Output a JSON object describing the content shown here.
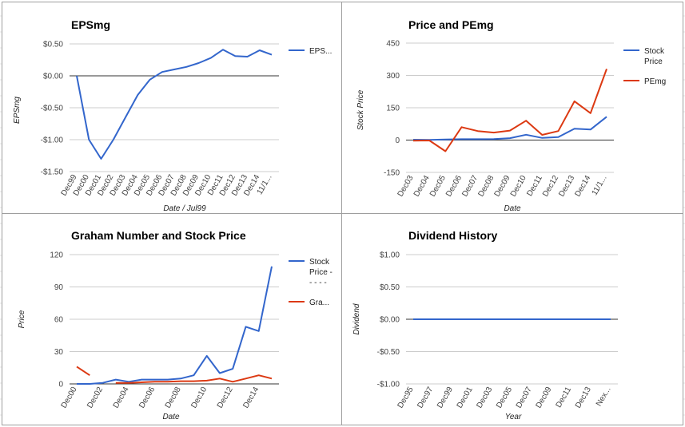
{
  "colors": {
    "blue": "#3366cc",
    "red": "#dc3912",
    "grid": "#cccccc",
    "zero": "#333333"
  },
  "chart_data": [
    {
      "type": "line",
      "title": "EPSmg",
      "xlabel": "Date / Jul99",
      "ylabel": "EPSmg",
      "ylim": [
        -1.5,
        0.5
      ],
      "yticks": [
        0.5,
        0,
        -0.5,
        -1,
        -1.5
      ],
      "ytick_labels": [
        "$0.50",
        "$0.00",
        "-$0.50",
        "-$1.00",
        "-$1.50"
      ],
      "categories": [
        "Dec99",
        "Dec00",
        "Dec01",
        "Dec02",
        "Dec03",
        "Dec04",
        "Dec05",
        "Dec06",
        "Dec07",
        "Dec08",
        "Dec09",
        "Dec10",
        "Dec11",
        "Dec12",
        "Dec13",
        "Dec14",
        "11/1..."
      ],
      "legend": "right",
      "series": [
        {
          "name": "EPS...",
          "color": "#3366cc",
          "values": [
            0.0,
            -1.0,
            -1.3,
            -1.0,
            -0.65,
            -0.3,
            -0.06,
            0.06,
            0.1,
            0.14,
            0.2,
            0.28,
            0.41,
            0.31,
            0.3,
            0.4,
            0.33
          ]
        }
      ]
    },
    {
      "type": "line",
      "title": "Price and PEmg",
      "xlabel": "Date",
      "ylabel": "Stock Price",
      "ylim": [
        -150,
        450
      ],
      "yticks": [
        450,
        300,
        150,
        0,
        -150
      ],
      "ytick_labels": [
        "450",
        "300",
        "150",
        "0",
        "-150"
      ],
      "categories": [
        "Dec03",
        "Dec04",
        "Dec05",
        "Dec06",
        "Dec07",
        "Dec08",
        "Dec09",
        "Dec10",
        "Dec11",
        "Dec12",
        "Dec13",
        "Dec14",
        "11/1..."
      ],
      "legend": "right",
      "series": [
        {
          "name": "Stock Price",
          "legend_lines": [
            "Stock",
            "Price"
          ],
          "color": "#3366cc",
          "values": [
            2,
            1,
            3,
            4,
            4,
            5,
            9,
            25,
            10,
            14,
            53,
            49,
            108
          ]
        },
        {
          "name": "PEmg",
          "legend_lines": [
            "PEmg"
          ],
          "color": "#dc3912",
          "values": [
            -3,
            -2,
            -52,
            60,
            42,
            35,
            44,
            90,
            24,
            42,
            180,
            125,
            330
          ]
        }
      ]
    },
    {
      "type": "line",
      "title": "Graham Number and Stock Price",
      "xlabel": "Date",
      "ylabel": "Price",
      "ylim": [
        0,
        120
      ],
      "yticks": [
        120,
        90,
        60,
        30,
        0
      ],
      "ytick_labels": [
        "120",
        "90",
        "60",
        "30",
        "0"
      ],
      "categories": [
        "Dec00",
        "Dec01",
        "Dec02",
        "Dec03",
        "Dec04",
        "Dec05",
        "Dec06",
        "Dec07",
        "Dec08",
        "Dec09",
        "Dec10",
        "Dec11",
        "Dec12",
        "Dec13",
        "Dec14",
        "11/1..."
      ],
      "category_labels": [
        "Dec00",
        "Dec02",
        "Dec04",
        "Dec06",
        "Dec08",
        "Dec10",
        "Dec12",
        "Dec14"
      ],
      "legend": "right",
      "series": [
        {
          "name": "Stock Price - - - - -",
          "legend_lines": [
            "Stock",
            "Price -",
            "- - - -"
          ],
          "color": "#3366cc",
          "values": [
            0,
            0,
            1,
            4,
            2,
            4,
            4,
            4,
            5,
            8,
            26,
            10,
            14,
            53,
            49,
            109
          ]
        },
        {
          "name": "Gra...",
          "legend_lines": [
            "Gra..."
          ],
          "color": "#dc3912",
          "values": [
            16,
            8,
            null,
            1,
            1,
            1.5,
            2,
            2,
            2.5,
            2.5,
            3,
            5,
            2,
            5,
            8,
            5
          ]
        }
      ]
    },
    {
      "type": "line",
      "title": "Dividend History",
      "xlabel": "Year",
      "ylabel": "Dividend",
      "ylim": [
        -1,
        1
      ],
      "yticks": [
        1,
        0.5,
        0,
        -0.5,
        -1
      ],
      "ytick_labels": [
        "$1.00",
        "$0.50",
        "$0.00",
        "-$0.50",
        "-$1.00"
      ],
      "categories": [
        "Dec95",
        "Dec97",
        "Dec99",
        "Dec01",
        "Dec03",
        "Dec05",
        "Dec07",
        "Dec09",
        "Dec11",
        "Dec13",
        "Nex..."
      ],
      "legend": "none",
      "series": [
        {
          "name": "",
          "color": "#3366cc",
          "values": [
            0,
            0,
            0,
            0,
            0,
            0,
            0,
            0,
            0,
            0,
            0
          ]
        }
      ]
    }
  ]
}
